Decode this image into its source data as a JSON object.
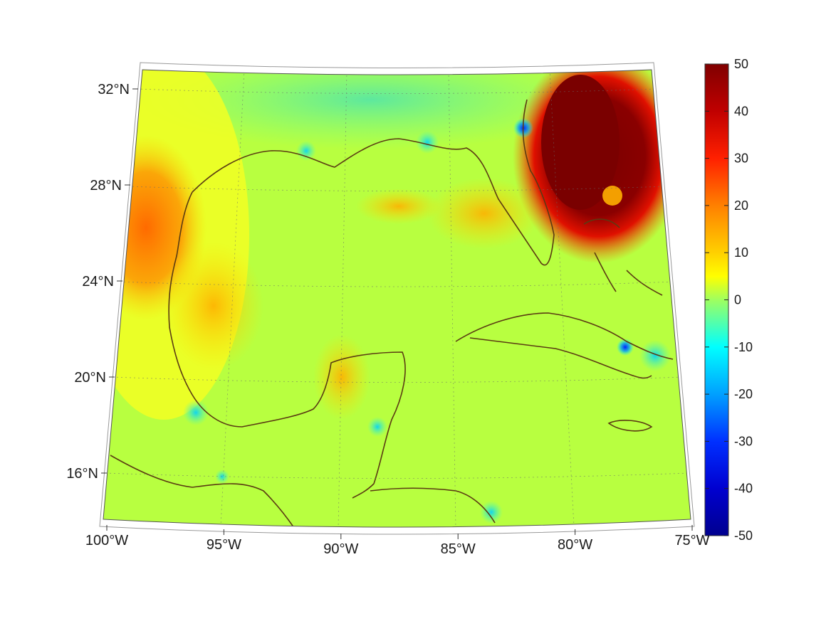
{
  "map": {
    "projection": "conic",
    "field_colormap": "jet",
    "land_outline_color": "#5a3b12",
    "graticule": "dotted",
    "lon_ticks": [
      {
        "value": -100,
        "label": "100°W"
      },
      {
        "value": -95,
        "label": "95°W"
      },
      {
        "value": -90,
        "label": "90°W"
      },
      {
        "value": -85,
        "label": "85°W"
      },
      {
        "value": -80,
        "label": "80°W"
      },
      {
        "value": -75,
        "label": "75°W"
      }
    ],
    "lat_ticks": [
      {
        "value": 32,
        "label": "32°N"
      },
      {
        "value": 28,
        "label": "28°N"
      },
      {
        "value": 24,
        "label": "24°N"
      },
      {
        "value": 20,
        "label": "20°N"
      },
      {
        "value": 16,
        "label": "16°N"
      }
    ],
    "features": [
      {
        "name": "hurricane-high-anomaly",
        "description_value_max": 50
      },
      {
        "name": "western-gulf-coast-anomaly",
        "value_approx": 25
      }
    ]
  },
  "colorbar": {
    "range": [
      -50,
      50
    ],
    "ticks": [
      {
        "value": 50,
        "label": "50"
      },
      {
        "value": 40,
        "label": "40"
      },
      {
        "value": 30,
        "label": "30"
      },
      {
        "value": 20,
        "label": "20"
      },
      {
        "value": 10,
        "label": "10"
      },
      {
        "value": 0,
        "label": "0"
      },
      {
        "value": -10,
        "label": "-10"
      },
      {
        "value": -20,
        "label": "-20"
      },
      {
        "value": -30,
        "label": "-30"
      },
      {
        "value": -40,
        "label": "-40"
      },
      {
        "value": -50,
        "label": "-50"
      }
    ],
    "colors": [
      "#800000",
      "#ff0000",
      "#ff8000",
      "#ffff00",
      "#80ff80",
      "#00ffff",
      "#0080ff",
      "#0000ff",
      "#00008f"
    ]
  }
}
